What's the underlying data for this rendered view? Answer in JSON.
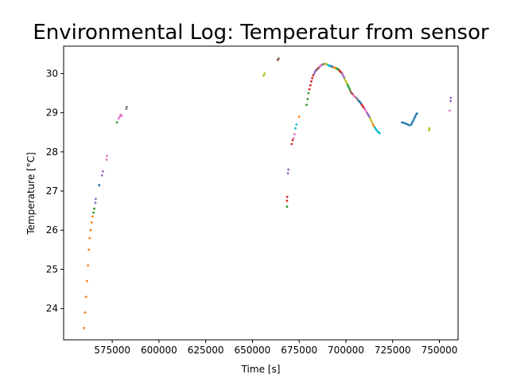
{
  "chart_data": {
    "type": "scatter",
    "title": "Environmental Log: Temperatur from sensor",
    "xlabel": "Time [s]",
    "ylabel": "Temperature [°C]",
    "xlim": [
      549000,
      760000
    ],
    "ylim": [
      23.2,
      30.7
    ],
    "xticks": [
      575000,
      600000,
      625000,
      650000,
      675000,
      700000,
      725000,
      750000
    ],
    "yticks": [
      24,
      25,
      26,
      27,
      28,
      29,
      30
    ],
    "grid": false,
    "legend": "none",
    "series": [
      {
        "color": "#ff7f0e",
        "points": [
          [
            560000,
            23.5
          ],
          [
            560500,
            23.9
          ],
          [
            561000,
            24.3
          ],
          [
            561500,
            24.7
          ],
          [
            562000,
            25.1
          ],
          [
            562500,
            25.5
          ],
          [
            563000,
            25.8
          ],
          [
            563500,
            26.0
          ],
          [
            564000,
            26.2
          ],
          [
            564500,
            26.35
          ]
        ]
      },
      {
        "color": "#2ca02c",
        "points": [
          [
            565000,
            26.45
          ],
          [
            565400,
            26.55
          ]
        ]
      },
      {
        "color": "#9467bd",
        "points": [
          [
            566000,
            26.7
          ],
          [
            566200,
            26.8
          ]
        ]
      },
      {
        "color": "#1f77b4",
        "points": [
          [
            568000,
            27.15
          ]
        ]
      },
      {
        "color": "#9467bd",
        "points": [
          [
            569500,
            27.4
          ],
          [
            570000,
            27.5
          ]
        ]
      },
      {
        "color": "#e377c2",
        "points": [
          [
            572000,
            27.8
          ],
          [
            572200,
            27.9
          ]
        ]
      },
      {
        "color": "#2ca02c",
        "points": [
          [
            577500,
            28.75
          ]
        ]
      },
      {
        "color": "#e377c2",
        "points": [
          [
            578500,
            28.85
          ],
          [
            579000,
            28.9
          ],
          [
            579500,
            28.95
          ],
          [
            580000,
            28.92
          ]
        ]
      },
      {
        "color": "#7f7f7f",
        "points": [
          [
            582500,
            29.1
          ],
          [
            582800,
            29.15
          ]
        ]
      },
      {
        "color": "#bcbd22",
        "points": [
          [
            656000,
            29.95
          ],
          [
            656500,
            30.0
          ]
        ]
      },
      {
        "color": "#8c564b",
        "points": [
          [
            663500,
            30.35
          ],
          [
            664000,
            30.38
          ]
        ]
      },
      {
        "color": "#2ca02c",
        "points": [
          [
            668500,
            26.6
          ]
        ]
      },
      {
        "color": "#d62728",
        "points": [
          [
            668500,
            26.75
          ],
          [
            668600,
            26.85
          ]
        ]
      },
      {
        "color": "#9467bd",
        "points": [
          [
            669000,
            27.45
          ],
          [
            669200,
            27.55
          ]
        ]
      },
      {
        "color": "#d62728",
        "points": [
          [
            671000,
            28.2
          ],
          [
            671500,
            28.3
          ]
        ]
      },
      {
        "color": "#e377c2",
        "points": [
          [
            672000,
            28.35
          ],
          [
            672500,
            28.45
          ]
        ]
      },
      {
        "color": "#17becf",
        "points": [
          [
            673000,
            28.6
          ],
          [
            673500,
            28.7
          ]
        ]
      },
      {
        "color": "#ff7f0e",
        "points": [
          [
            675000,
            28.9
          ]
        ]
      },
      {
        "color": "#2ca02c",
        "points": [
          [
            679000,
            29.2
          ],
          [
            679500,
            29.35
          ],
          [
            680000,
            29.5
          ]
        ]
      },
      {
        "color": "#d62728",
        "points": [
          [
            680500,
            29.6
          ],
          [
            681000,
            29.7
          ],
          [
            681500,
            29.8
          ],
          [
            682000,
            29.88
          ],
          [
            682500,
            29.95
          ]
        ]
      },
      {
        "color": "#9467bd",
        "points": [
          [
            683000,
            30.0
          ],
          [
            683500,
            30.05
          ],
          [
            684000,
            30.08
          ]
        ]
      },
      {
        "color": "#8c564b",
        "points": [
          [
            684500,
            30.1
          ],
          [
            685000,
            30.13
          ],
          [
            685500,
            30.15
          ]
        ]
      },
      {
        "color": "#e377c2",
        "points": [
          [
            686000,
            30.18
          ],
          [
            686500,
            30.2
          ],
          [
            687000,
            30.22
          ]
        ]
      },
      {
        "color": "#7f7f7f",
        "points": [
          [
            687500,
            30.23
          ],
          [
            688000,
            30.24
          ],
          [
            688500,
            30.25
          ]
        ]
      },
      {
        "color": "#bcbd22",
        "points": [
          [
            689000,
            30.25
          ],
          [
            689500,
            30.24
          ],
          [
            690000,
            30.23
          ]
        ]
      },
      {
        "color": "#17becf",
        "points": [
          [
            690500,
            30.22
          ],
          [
            691000,
            30.2
          ],
          [
            691500,
            30.2
          ]
        ]
      },
      {
        "color": "#1f77b4",
        "points": [
          [
            692000,
            30.19
          ],
          [
            692500,
            30.18
          ],
          [
            693000,
            30.17
          ]
        ]
      },
      {
        "color": "#ff7f0e",
        "points": [
          [
            693500,
            30.16
          ],
          [
            694000,
            30.15
          ],
          [
            694500,
            30.14
          ]
        ]
      },
      {
        "color": "#2ca02c",
        "points": [
          [
            695000,
            30.13
          ],
          [
            695500,
            30.12
          ],
          [
            696000,
            30.1
          ]
        ]
      },
      {
        "color": "#d62728",
        "points": [
          [
            696500,
            30.08
          ],
          [
            697000,
            30.05
          ],
          [
            697500,
            30.03
          ]
        ]
      },
      {
        "color": "#9467bd",
        "points": [
          [
            698000,
            30.0
          ],
          [
            698500,
            29.95
          ],
          [
            699000,
            29.9
          ]
        ]
      },
      {
        "color": "#bcbd22",
        "points": [
          [
            699500,
            29.85
          ],
          [
            700000,
            29.8
          ],
          [
            700500,
            29.75
          ]
        ]
      },
      {
        "color": "#2ca02c",
        "points": [
          [
            701000,
            29.7
          ],
          [
            701500,
            29.65
          ],
          [
            702000,
            29.6
          ]
        ]
      },
      {
        "color": "#8c564b",
        "points": [
          [
            702500,
            29.55
          ],
          [
            703000,
            29.5
          ],
          [
            703500,
            29.48
          ]
        ]
      },
      {
        "color": "#e377c2",
        "points": [
          [
            704000,
            29.45
          ],
          [
            704500,
            29.42
          ],
          [
            705000,
            29.4
          ]
        ]
      },
      {
        "color": "#7f7f7f",
        "points": [
          [
            705500,
            29.38
          ],
          [
            706000,
            29.35
          ],
          [
            706500,
            29.32
          ]
        ]
      },
      {
        "color": "#1f77b4",
        "points": [
          [
            707000,
            29.3
          ],
          [
            707500,
            29.27
          ],
          [
            708000,
            29.24
          ]
        ]
      },
      {
        "color": "#d62728",
        "points": [
          [
            708500,
            29.2
          ],
          [
            709000,
            29.17
          ],
          [
            709500,
            29.13
          ]
        ]
      },
      {
        "color": "#e377c2",
        "points": [
          [
            710000,
            29.1
          ],
          [
            710500,
            29.06
          ],
          [
            711000,
            29.02
          ]
        ]
      },
      {
        "color": "#9467bd",
        "points": [
          [
            711500,
            28.98
          ],
          [
            712000,
            28.94
          ],
          [
            712500,
            28.9
          ]
        ]
      },
      {
        "color": "#bcbd22",
        "points": [
          [
            713000,
            28.85
          ],
          [
            713500,
            28.8
          ],
          [
            714000,
            28.75
          ]
        ]
      },
      {
        "color": "#ff7f0e",
        "points": [
          [
            714500,
            28.7
          ],
          [
            715000,
            28.65
          ]
        ]
      },
      {
        "color": "#17becf",
        "points": [
          [
            715500,
            28.62
          ],
          [
            716000,
            28.58
          ],
          [
            716500,
            28.55
          ],
          [
            717000,
            28.52
          ],
          [
            717500,
            28.5
          ],
          [
            718000,
            28.48
          ]
        ]
      },
      {
        "color": "#1f77b4",
        "points": [
          [
            730000,
            28.75
          ],
          [
            731000,
            28.74
          ],
          [
            732000,
            28.72
          ],
          [
            733000,
            28.7
          ],
          [
            734000,
            28.68
          ],
          [
            735000,
            28.7
          ],
          [
            735500,
            28.75
          ],
          [
            736000,
            28.8
          ],
          [
            736500,
            28.85
          ],
          [
            737000,
            28.9
          ],
          [
            737500,
            28.95
          ],
          [
            738000,
            28.98
          ]
        ]
      },
      {
        "color": "#bcbd22",
        "points": [
          [
            744500,
            28.55
          ],
          [
            744600,
            28.6
          ]
        ]
      },
      {
        "color": "#e377c2",
        "points": [
          [
            755500,
            29.05
          ]
        ]
      },
      {
        "color": "#9467bd",
        "points": [
          [
            756000,
            29.3
          ],
          [
            756100,
            29.38
          ]
        ]
      }
    ]
  }
}
